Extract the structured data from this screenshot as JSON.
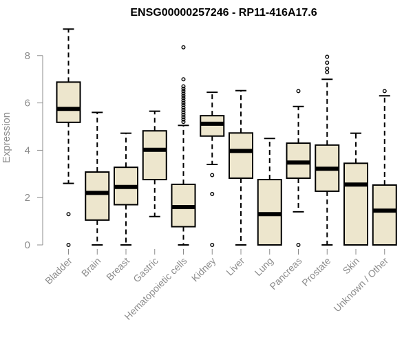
{
  "chart_data": {
    "type": "box",
    "title": "ENSG00000257246 - RP11-416A17.6",
    "xlabel": "",
    "ylabel": "Expression",
    "ylim": [
      0,
      9.15
    ],
    "yticks": [
      "0",
      "2",
      "4",
      "6",
      "8"
    ],
    "box_fill": "#ede6cd",
    "categories": [
      "Bladder",
      "Brain",
      "Breast",
      "Gastric",
      "Hematopoietic cells",
      "Kidney",
      "Liver",
      "Lung",
      "Pancreas",
      "Prostate",
      "Skin",
      "Unknown / Other"
    ],
    "boxes": [
      {
        "category": "Bladder",
        "whisker_low": 2.6,
        "q1": 5.18,
        "median": 5.75,
        "q3": 6.88,
        "whisker_high": 9.12,
        "outliers": [
          1.3,
          0.0
        ]
      },
      {
        "category": "Brain",
        "whisker_low": 0.0,
        "q1": 1.05,
        "median": 2.2,
        "q3": 3.08,
        "whisker_high": 5.6,
        "outliers": []
      },
      {
        "category": "Breast",
        "whisker_low": 0.0,
        "q1": 1.7,
        "median": 2.45,
        "q3": 3.28,
        "whisker_high": 4.72,
        "outliers": []
      },
      {
        "category": "Gastric",
        "whisker_low": 1.2,
        "q1": 2.76,
        "median": 4.02,
        "q3": 4.82,
        "whisker_high": 5.65,
        "outliers": []
      },
      {
        "category": "Hematopoietic cells",
        "whisker_low": 0.0,
        "q1": 0.77,
        "median": 1.6,
        "q3": 2.56,
        "whisker_high": 5.05,
        "outliers": [
          8.35,
          7.0,
          6.7,
          6.6,
          6.5,
          6.4,
          6.3,
          6.2,
          6.1,
          6.0,
          5.9,
          5.8,
          5.7,
          5.6,
          5.5,
          5.4,
          5.3,
          5.2
        ]
      },
      {
        "category": "Kidney",
        "whisker_low": 3.4,
        "q1": 4.6,
        "median": 5.12,
        "q3": 5.46,
        "whisker_high": 6.45,
        "outliers": [
          2.95,
          2.15,
          0.0
        ]
      },
      {
        "category": "Liver",
        "whisker_low": 0.0,
        "q1": 2.82,
        "median": 3.97,
        "q3": 4.73,
        "whisker_high": 6.52,
        "outliers": []
      },
      {
        "category": "Lung",
        "whisker_low": 0.0,
        "q1": 0.0,
        "median": 1.3,
        "q3": 2.76,
        "whisker_high": 4.5,
        "outliers": []
      },
      {
        "category": "Pancreas",
        "whisker_low": 1.4,
        "q1": 2.82,
        "median": 3.48,
        "q3": 4.3,
        "whisker_high": 5.85,
        "outliers": [
          6.5,
          0.0
        ]
      },
      {
        "category": "Prostate",
        "whisker_low": 0.0,
        "q1": 2.27,
        "median": 3.22,
        "q3": 4.22,
        "whisker_high": 7.0,
        "outliers": [
          7.95,
          7.7,
          7.45,
          7.3
        ]
      },
      {
        "category": "Skin",
        "whisker_low": 0.0,
        "q1": 0.0,
        "median": 2.55,
        "q3": 3.45,
        "whisker_high": 4.72,
        "outliers": []
      },
      {
        "category": "Unknown / Other",
        "whisker_low": 0.0,
        "q1": 0.0,
        "median": 1.45,
        "q3": 2.53,
        "whisker_high": 6.3,
        "outliers": [
          6.5
        ]
      }
    ]
  }
}
